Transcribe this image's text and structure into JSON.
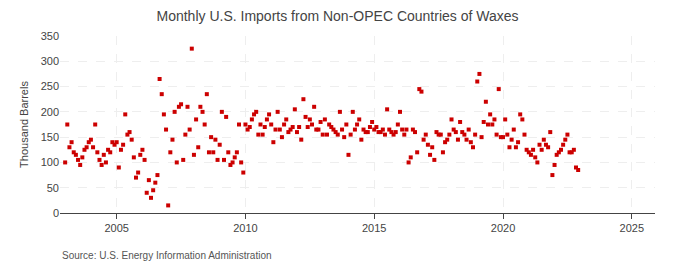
{
  "chart_data": {
    "type": "scatter",
    "title": "Monthly U.S. Imports from Non-OPEC Countries of Waxes",
    "ylabel": "Thousand Barrels",
    "annotations": [
      "Source: U.S. Energy Information Administration"
    ],
    "color": "#cc0000",
    "marker": "square",
    "grid": true,
    "xlim": [
      2002.8,
      2025.9
    ],
    "xticks": [
      2005,
      2010,
      2015,
      2020,
      2025
    ],
    "ylim": [
      0,
      350
    ],
    "yticks": [
      0,
      50,
      100,
      150,
      200,
      250,
      300,
      350
    ],
    "x": [
      2003,
      2003.0833333333333,
      2003.1666666666667,
      2003.25,
      2003.3333333333333,
      2003.4166666666667,
      2003.5,
      2003.5833333333333,
      2003.6666666666667,
      2003.75,
      2003.8333333333333,
      2003.9166666666667,
      2004,
      2004.0833333333333,
      2004.1666666666667,
      2004.25,
      2004.3333333333333,
      2004.4166666666667,
      2004.5,
      2004.5833333333333,
      2004.6666666666667,
      2004.75,
      2004.8333333333333,
      2004.9166666666667,
      2005,
      2005.0833333333333,
      2005.1666666666667,
      2005.25,
      2005.3333333333333,
      2005.4166666666667,
      2005.5,
      2005.5833333333333,
      2005.6666666666667,
      2005.75,
      2005.8333333333333,
      2005.9166666666667,
      2006,
      2006.0833333333333,
      2006.1666666666667,
      2006.25,
      2006.3333333333333,
      2006.4166666666667,
      2006.5,
      2006.5833333333333,
      2006.6666666666667,
      2006.75,
      2006.8333333333333,
      2006.9166666666667,
      2007,
      2007.0833333333333,
      2007.1666666666667,
      2007.25,
      2007.3333333333333,
      2007.4166666666667,
      2007.5,
      2007.5833333333333,
      2007.6666666666667,
      2007.75,
      2007.8333333333333,
      2007.9166666666667,
      2008,
      2008.0833333333333,
      2008.1666666666667,
      2008.25,
      2008.3333333333333,
      2008.4166666666667,
      2008.5,
      2008.5833333333333,
      2008.6666666666667,
      2008.75,
      2008.8333333333333,
      2008.9166666666667,
      2009,
      2009.0833333333333,
      2009.1666666666667,
      2009.25,
      2009.3333333333333,
      2009.4166666666667,
      2009.5,
      2009.5833333333333,
      2009.6666666666667,
      2009.75,
      2009.8333333333333,
      2009.9166666666667,
      2010,
      2010.0833333333333,
      2010.1666666666667,
      2010.25,
      2010.3333333333333,
      2010.4166666666667,
      2010.5,
      2010.5833333333333,
      2010.6666666666667,
      2010.75,
      2010.8333333333333,
      2010.9166666666667,
      2011,
      2011.0833333333333,
      2011.1666666666667,
      2011.25,
      2011.3333333333333,
      2011.4166666666667,
      2011.5,
      2011.5833333333333,
      2011.6666666666667,
      2011.75,
      2011.8333333333333,
      2011.9166666666667,
      2012,
      2012.0833333333333,
      2012.1666666666667,
      2012.25,
      2012.3333333333333,
      2012.4166666666667,
      2012.5,
      2012.5833333333333,
      2012.6666666666667,
      2012.75,
      2012.8333333333333,
      2012.9166666666667,
      2013,
      2013.0833333333333,
      2013.1666666666667,
      2013.25,
      2013.3333333333333,
      2013.4166666666667,
      2013.5,
      2013.5833333333333,
      2013.6666666666667,
      2013.75,
      2013.8333333333333,
      2013.9166666666667,
      2014,
      2014.0833333333333,
      2014.1666666666667,
      2014.25,
      2014.3333333333333,
      2014.4166666666667,
      2014.5,
      2014.5833333333333,
      2014.6666666666667,
      2014.75,
      2014.8333333333333,
      2014.9166666666667,
      2015,
      2015.0833333333333,
      2015.1666666666667,
      2015.25,
      2015.3333333333333,
      2015.4166666666667,
      2015.5,
      2015.5833333333333,
      2015.6666666666667,
      2015.75,
      2015.8333333333333,
      2015.9166666666667,
      2016,
      2016.0833333333333,
      2016.1666666666667,
      2016.25,
      2016.3333333333333,
      2016.4166666666667,
      2016.5,
      2016.5833333333333,
      2016.6666666666667,
      2016.75,
      2016.8333333333333,
      2016.9166666666667,
      2017,
      2017.0833333333333,
      2017.1666666666667,
      2017.25,
      2017.3333333333333,
      2017.4166666666667,
      2017.5,
      2017.5833333333333,
      2017.6666666666667,
      2017.75,
      2017.8333333333333,
      2017.9166666666667,
      2018,
      2018.0833333333333,
      2018.1666666666667,
      2018.25,
      2018.3333333333333,
      2018.4166666666667,
      2018.5,
      2018.5833333333333,
      2018.6666666666667,
      2018.75,
      2018.8333333333333,
      2018.9166666666667,
      2019,
      2019.0833333333333,
      2019.1666666666667,
      2019.25,
      2019.3333333333333,
      2019.4166666666667,
      2019.5,
      2019.5833333333333,
      2019.6666666666667,
      2019.75,
      2019.8333333333333,
      2019.9166666666667,
      2020,
      2020.0833333333333,
      2020.1666666666667,
      2020.25,
      2020.3333333333333,
      2020.4166666666667,
      2020.5,
      2020.5833333333333,
      2020.6666666666667,
      2020.75,
      2020.8333333333333,
      2020.9166666666667,
      2021,
      2021.0833333333333,
      2021.1666666666667,
      2021.25,
      2021.3333333333333,
      2021.4166666666667,
      2021.5,
      2021.5833333333333,
      2021.6666666666667,
      2021.75,
      2021.8333333333333,
      2021.9166666666667,
      2022,
      2022.0833333333333,
      2022.1666666666667,
      2022.25,
      2022.3333333333333,
      2022.4166666666667,
      2022.5,
      2022.5833333333333,
      2022.6666666666667,
      2022.75,
      2022.8333333333333,
      2022.9166666666667
    ],
    "values": [
      100,
      175,
      130,
      140,
      120,
      115,
      105,
      95,
      110,
      125,
      130,
      140,
      145,
      130,
      175,
      120,
      105,
      95,
      115,
      100,
      125,
      120,
      140,
      135,
      140,
      90,
      125,
      135,
      195,
      155,
      160,
      145,
      110,
      70,
      80,
      115,
      125,
      105,
      40,
      65,
      30,
      45,
      60,
      75,
      265,
      235,
      195,
      165,
      15,
      120,
      145,
      200,
      100,
      210,
      215,
      105,
      155,
      210,
      165,
      325,
      115,
      185,
      130,
      210,
      200,
      175,
      235,
      120,
      150,
      120,
      145,
      105,
      135,
      200,
      105,
      190,
      120,
      95,
      100,
      110,
      120,
      175,
      100,
      80,
      175,
      165,
      170,
      185,
      195,
      200,
      155,
      175,
      155,
      170,
      185,
      195,
      175,
      140,
      165,
      200,
      165,
      150,
      175,
      185,
      160,
      165,
      170,
      205,
      160,
      170,
      145,
      225,
      190,
      170,
      185,
      175,
      210,
      165,
      165,
      180,
      155,
      185,
      155,
      175,
      170,
      165,
      160,
      155,
      200,
      165,
      150,
      175,
      115,
      155,
      200,
      165,
      175,
      185,
      145,
      165,
      160,
      160,
      170,
      180,
      165,
      170,
      160,
      160,
      165,
      155,
      205,
      165,
      160,
      155,
      160,
      175,
      200,
      165,
      155,
      165,
      100,
      110,
      165,
      160,
      120,
      245,
      240,
      145,
      155,
      135,
      115,
      130,
      105,
      160,
      155,
      155,
      120,
      140,
      145,
      155,
      185,
      165,
      160,
      145,
      180,
      160,
      155,
      145,
      165,
      140,
      130,
      155,
      260,
      275,
      150,
      180,
      220,
      175,
      195,
      175,
      185,
      155,
      245,
      150,
      150,
      185,
      155,
      130,
      145,
      165,
      130,
      140,
      195,
      185,
      155,
      125,
      120,
      115,
      125,
      110,
      100,
      135,
      125,
      145,
      135,
      130,
      160,
      75,
      95,
      115,
      120,
      125,
      135,
      145,
      155,
      120,
      120,
      125,
      90,
      85
    ]
  }
}
